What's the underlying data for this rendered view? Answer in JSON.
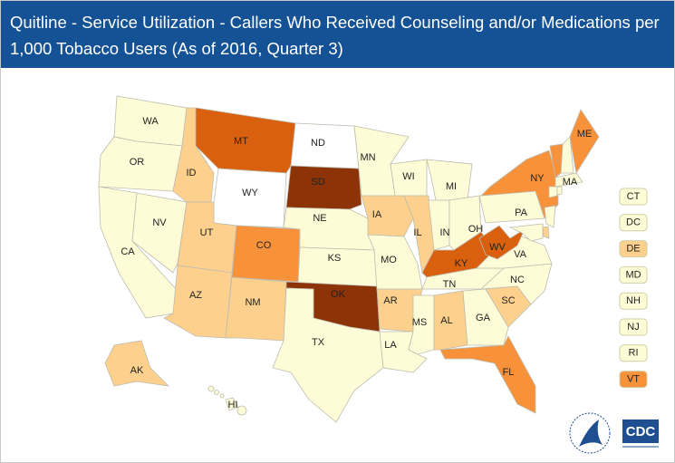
{
  "header": {
    "title": "Quitline - Service Utilization - Callers Who Received Counseling and/or Medications per 1,000 Tobacco Users (As of 2016, Quarter 3)"
  },
  "states": [
    {
      "abbr": "WA",
      "color": "#fefcd6"
    },
    {
      "abbr": "OR",
      "color": "#fefcd6"
    },
    {
      "abbr": "CA",
      "color": "#fefcd6"
    },
    {
      "abbr": "NV",
      "color": "#fefcd6"
    },
    {
      "abbr": "ID",
      "color": "#fdd08d"
    },
    {
      "abbr": "MT",
      "color": "#d8600f"
    },
    {
      "abbr": "WY",
      "color": "#ffffff"
    },
    {
      "abbr": "UT",
      "color": "#fdd08d"
    },
    {
      "abbr": "AZ",
      "color": "#fdd08d"
    },
    {
      "abbr": "CO",
      "color": "#f7923a"
    },
    {
      "abbr": "NM",
      "color": "#fdd08d"
    },
    {
      "abbr": "ND",
      "color": "#ffffff"
    },
    {
      "abbr": "SD",
      "color": "#8c3307"
    },
    {
      "abbr": "NE",
      "color": "#fefcd6"
    },
    {
      "abbr": "KS",
      "color": "#fefcd6"
    },
    {
      "abbr": "OK",
      "color": "#8c3307"
    },
    {
      "abbr": "TX",
      "color": "#fefcd6"
    },
    {
      "abbr": "MN",
      "color": "#fefcd6"
    },
    {
      "abbr": "IA",
      "color": "#fdd08d"
    },
    {
      "abbr": "MO",
      "color": "#fefcd6"
    },
    {
      "abbr": "AR",
      "color": "#fdd08d"
    },
    {
      "abbr": "LA",
      "color": "#fefcd6"
    },
    {
      "abbr": "WI",
      "color": "#fefcd6"
    },
    {
      "abbr": "MI",
      "color": "#fefcd6"
    },
    {
      "abbr": "IL",
      "color": "#fdd08d"
    },
    {
      "abbr": "IN",
      "color": "#fefcd6"
    },
    {
      "abbr": "OH",
      "color": "#fefcd6"
    },
    {
      "abbr": "KY",
      "color": "#d8600f"
    },
    {
      "abbr": "TN",
      "color": "#fefcd6"
    },
    {
      "abbr": "MS",
      "color": "#fefcd6"
    },
    {
      "abbr": "AL",
      "color": "#fdd08d"
    },
    {
      "abbr": "GA",
      "color": "#fefcd6"
    },
    {
      "abbr": "FL",
      "color": "#f7923a"
    },
    {
      "abbr": "SC",
      "color": "#fdd08d"
    },
    {
      "abbr": "NC",
      "color": "#fefcd6"
    },
    {
      "abbr": "VA",
      "color": "#fefcd6"
    },
    {
      "abbr": "WV",
      "color": "#d8600f"
    },
    {
      "abbr": "PA",
      "color": "#fefcd6"
    },
    {
      "abbr": "NY",
      "color": "#f7923a"
    },
    {
      "abbr": "ME",
      "color": "#f7923a"
    },
    {
      "abbr": "MA",
      "color": "#fefcd6"
    },
    {
      "abbr": "AK",
      "color": "#fdd08d"
    },
    {
      "abbr": "HI",
      "color": "#fefcd6"
    }
  ],
  "small_states": [
    {
      "abbr": "CT",
      "color": "#fefcd6"
    },
    {
      "abbr": "DC",
      "color": "#fefcd6"
    },
    {
      "abbr": "DE",
      "color": "#fdd08d"
    },
    {
      "abbr": "MD",
      "color": "#fefcd6"
    },
    {
      "abbr": "NH",
      "color": "#fefcd6"
    },
    {
      "abbr": "NJ",
      "color": "#fefcd6"
    },
    {
      "abbr": "RI",
      "color": "#fefcd6"
    },
    {
      "abbr": "VT",
      "color": "#f7923a"
    }
  ],
  "logo_text": "CDC"
}
